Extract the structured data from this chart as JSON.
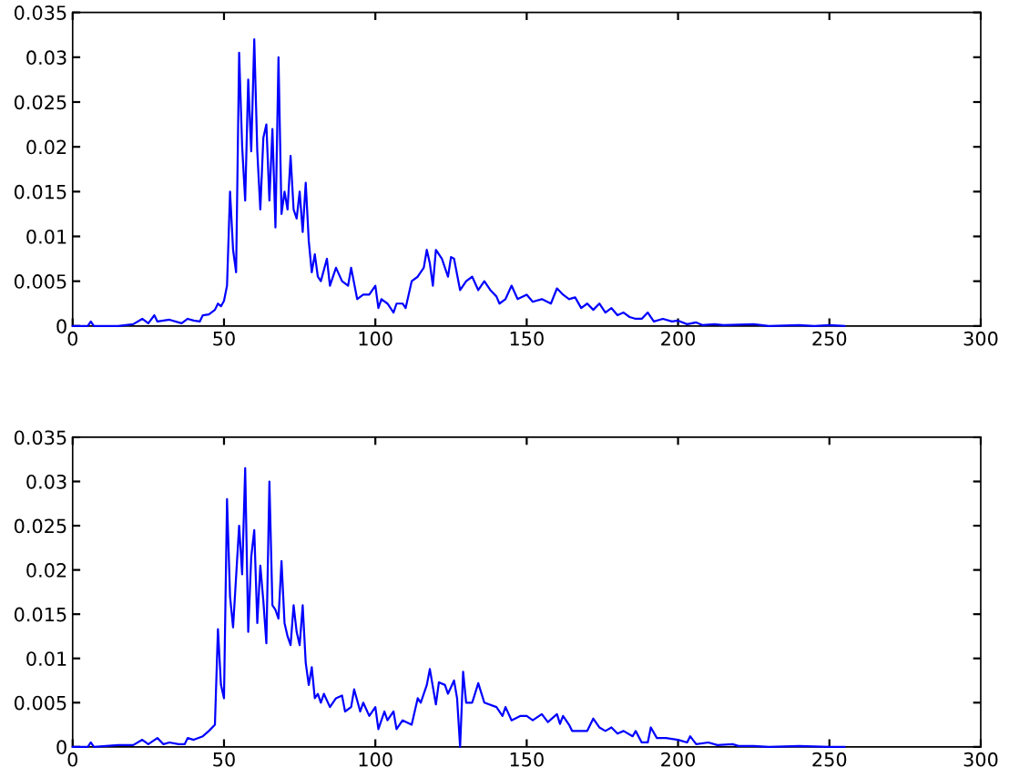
{
  "chart_data": [
    {
      "type": "line",
      "xlim": [
        0,
        300
      ],
      "ylim": [
        0,
        0.035
      ],
      "xticks": [
        0,
        50,
        100,
        150,
        200,
        250,
        300
      ],
      "yticks": [
        0,
        0.005,
        0.01,
        0.015,
        0.02,
        0.025,
        0.03,
        0.035
      ],
      "series": [
        {
          "color": "#0000ff",
          "x": [
            0,
            5,
            6,
            7,
            15,
            20,
            23,
            25,
            27,
            28,
            32,
            36,
            38,
            40,
            42,
            43,
            45,
            47,
            48,
            49,
            50,
            51,
            52,
            53,
            54,
            55,
            56,
            57,
            58,
            59,
            60,
            61,
            62,
            63,
            64,
            65,
            66,
            67,
            68,
            69,
            70,
            71,
            72,
            73,
            74,
            75,
            76,
            77,
            78,
            79,
            80,
            81,
            82,
            84,
            85,
            87,
            89,
            91,
            92,
            94,
            96,
            98,
            100,
            101,
            102,
            104,
            106,
            107,
            109,
            110,
            112,
            114,
            116,
            117,
            118,
            119,
            120,
            122,
            124,
            125,
            126,
            128,
            130,
            132,
            134,
            136,
            138,
            140,
            141,
            143,
            145,
            147,
            150,
            152,
            155,
            158,
            160,
            162,
            164,
            166,
            168,
            170,
            172,
            174,
            176,
            178,
            180,
            182,
            184,
            186,
            188,
            190,
            192,
            195,
            198,
            200,
            203,
            206,
            208,
            212,
            215,
            225,
            230,
            240,
            245,
            250,
            255
          ],
          "values": [
            0,
            0,
            0.0005,
            0,
            0,
            0.0002,
            0.0008,
            0.0003,
            0.0012,
            0.0005,
            0.0007,
            0.0003,
            0.0008,
            0.0006,
            0.0005,
            0.0012,
            0.0013,
            0.0018,
            0.0025,
            0.0022,
            0.0028,
            0.0045,
            0.015,
            0.0085,
            0.006,
            0.0305,
            0.02,
            0.014,
            0.0275,
            0.0195,
            0.032,
            0.0195,
            0.013,
            0.021,
            0.0225,
            0.014,
            0.022,
            0.011,
            0.03,
            0.0125,
            0.015,
            0.013,
            0.019,
            0.013,
            0.012,
            0.015,
            0.0105,
            0.016,
            0.0095,
            0.006,
            0.008,
            0.0055,
            0.005,
            0.0075,
            0.0045,
            0.0065,
            0.005,
            0.0045,
            0.0065,
            0.003,
            0.0035,
            0.0035,
            0.0045,
            0.002,
            0.003,
            0.0025,
            0.0015,
            0.0025,
            0.0025,
            0.002,
            0.005,
            0.0055,
            0.0065,
            0.0085,
            0.007,
            0.0045,
            0.0085,
            0.0075,
            0.0055,
            0.0077,
            0.0075,
            0.004,
            0.005,
            0.0055,
            0.004,
            0.005,
            0.004,
            0.0033,
            0.0025,
            0.003,
            0.0045,
            0.003,
            0.0035,
            0.0027,
            0.003,
            0.0025,
            0.0042,
            0.0035,
            0.003,
            0.0032,
            0.002,
            0.0025,
            0.0018,
            0.0025,
            0.0015,
            0.002,
            0.0012,
            0.0015,
            0.001,
            0.0008,
            0.0008,
            0.0015,
            0.0005,
            0.0008,
            0.0005,
            0.0006,
            0.0002,
            0.0004,
            0.0001,
            0.0002,
            0.0001,
            0.0002,
            0,
            0.0001,
            0,
            0.0001,
            0
          ]
        }
      ]
    },
    {
      "type": "line",
      "xlim": [
        0,
        300
      ],
      "ylim": [
        0,
        0.035
      ],
      "xticks": [
        0,
        50,
        100,
        150,
        200,
        250,
        300
      ],
      "yticks": [
        0,
        0.005,
        0.01,
        0.015,
        0.02,
        0.025,
        0.03,
        0.035
      ],
      "series": [
        {
          "color": "#0000ff",
          "x": [
            0,
            5,
            6,
            7,
            15,
            20,
            23,
            25,
            28,
            30,
            32,
            35,
            37,
            38,
            40,
            43,
            45,
            47,
            48,
            49,
            50,
            51,
            52,
            53,
            55,
            56,
            57,
            58,
            59,
            60,
            61,
            62,
            63,
            64,
            65,
            66,
            67,
            68,
            69,
            70,
            71,
            72,
            73,
            74,
            75,
            76,
            77,
            78,
            79,
            80,
            81,
            82,
            83,
            85,
            87,
            89,
            90,
            92,
            93,
            95,
            96,
            98,
            100,
            101,
            103,
            104,
            106,
            107,
            109,
            112,
            114,
            115,
            117,
            118,
            120,
            121,
            123,
            124,
            126,
            127,
            128,
            129,
            130,
            132,
            134,
            136,
            140,
            142,
            143,
            145,
            148,
            150,
            152,
            155,
            157,
            160,
            161,
            162,
            164,
            165,
            170,
            172,
            174,
            176,
            178,
            180,
            182,
            185,
            186,
            188,
            190,
            191,
            193,
            196,
            200,
            203,
            204,
            206,
            210,
            213,
            218,
            220,
            225,
            230,
            240,
            250,
            255
          ],
          "values": [
            0,
            0,
            0.0005,
            0,
            0.0002,
            0.0002,
            0.0008,
            0.0003,
            0.001,
            0.0003,
            0.0005,
            0.0003,
            0.0003,
            0.001,
            0.0008,
            0.0012,
            0.0018,
            0.0025,
            0.0133,
            0.007,
            0.0055,
            0.028,
            0.017,
            0.0135,
            0.025,
            0.0195,
            0.0315,
            0.013,
            0.0215,
            0.0245,
            0.014,
            0.0205,
            0.0165,
            0.0117,
            0.03,
            0.016,
            0.0155,
            0.0145,
            0.021,
            0.014,
            0.0125,
            0.0115,
            0.016,
            0.013,
            0.0115,
            0.016,
            0.0095,
            0.007,
            0.009,
            0.0055,
            0.006,
            0.005,
            0.006,
            0.0045,
            0.0055,
            0.0058,
            0.004,
            0.0045,
            0.0065,
            0.004,
            0.005,
            0.0035,
            0.0045,
            0.002,
            0.004,
            0.003,
            0.004,
            0.002,
            0.003,
            0.0025,
            0.0055,
            0.005,
            0.007,
            0.0088,
            0.0048,
            0.0073,
            0.007,
            0.006,
            0.0075,
            0.0055,
            0,
            0.0085,
            0.005,
            0.005,
            0.0072,
            0.005,
            0.0045,
            0.0035,
            0.0045,
            0.003,
            0.0035,
            0.0035,
            0.003,
            0.0037,
            0.0028,
            0.0037,
            0.0026,
            0.0035,
            0.0025,
            0.0018,
            0.0018,
            0.0032,
            0.0022,
            0.0018,
            0.0022,
            0.0015,
            0.0018,
            0.0012,
            0.0018,
            0.0005,
            0.0005,
            0.0022,
            0.001,
            0.001,
            0.0008,
            0.0005,
            0.0012,
            0.0003,
            0.0005,
            0.0002,
            0.0003,
            0.0001,
            0.0001,
            0,
            0.0001,
            0,
            0
          ]
        }
      ]
    }
  ]
}
